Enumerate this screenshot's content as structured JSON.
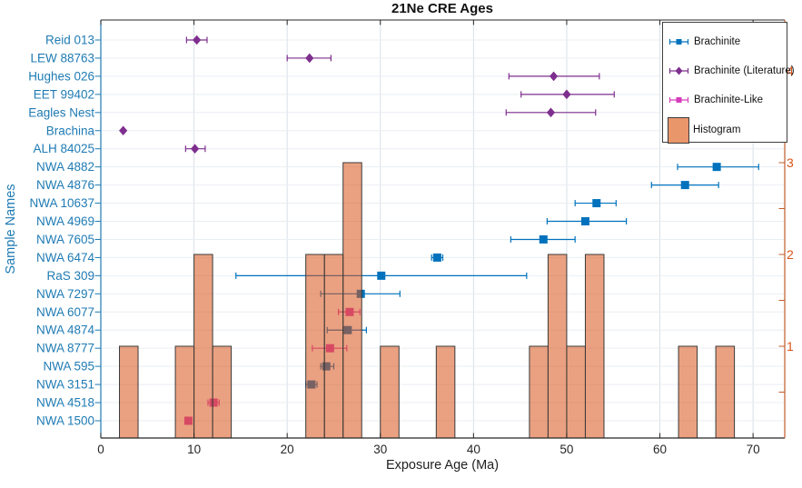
{
  "figure": {
    "title": "21Ne CRE Ages",
    "xlabel": "Exposure Age (Ma)",
    "ylabel": "Sample Names"
  },
  "legend": {
    "items": [
      {
        "label": "Brachinite",
        "marker": "blue-square-errorbar"
      },
      {
        "label": "Brachinite (Literature)",
        "marker": "purple-diamond-errorbar"
      },
      {
        "label": "Brachinite-Like",
        "marker": "magenta-square-errorbar"
      },
      {
        "label": "Histogram",
        "marker": "orange-swatch"
      }
    ]
  },
  "colors": {
    "brachinite": "#0072BD",
    "brachinite_literature": "#7E2F8E",
    "brachinite_like": "#D63CBC",
    "histogram_fill": "#D95319",
    "histogram_fill_opacity": 0.55,
    "histogram_edge": "#3A3A3A",
    "left_axis": "#1F7BB4",
    "right_axis": "#C25B2A",
    "right_label": "#D95319",
    "axis_dark": "#262626",
    "grid_v": "#D9E0E8",
    "grid_h": "#E9EEF3"
  },
  "chart_data": {
    "type": "scatter",
    "subtype": "horizontal errorbar chart with overlaid semi-transparent histogram",
    "title": "21Ne CRE Ages",
    "xlabel": "Exposure Age (Ma)",
    "ylabel": "Sample Names",
    "xlim": [
      0,
      73.4
    ],
    "x_ticks": [
      0,
      10,
      20,
      30,
      40,
      50,
      60,
      70
    ],
    "right_axis_ticks": [
      1,
      2,
      3,
      4
    ],
    "right_axis_minor_step": 0.5,
    "right_ylim": [
      0,
      4.56
    ],
    "grid": true,
    "legend_position": "top-right-inside",
    "samples": [
      {
        "name": "Reid 013",
        "group": "literature",
        "age": 10.3,
        "age_min": 9.2,
        "age_max": 11.4
      },
      {
        "name": "LEW 88763",
        "group": "literature",
        "age": 22.4,
        "age_min": 20.0,
        "age_max": 24.7
      },
      {
        "name": "Hughes 026",
        "group": "literature",
        "age": 48.6,
        "age_min": 43.8,
        "age_max": 53.5
      },
      {
        "name": "EET 99402",
        "group": "literature",
        "age": 50.0,
        "age_min": 45.1,
        "age_max": 55.1
      },
      {
        "name": "Eagles Nest",
        "group": "literature",
        "age": 48.3,
        "age_min": 43.5,
        "age_max": 53.1
      },
      {
        "name": "Brachina",
        "group": "literature",
        "age": 2.4,
        "age_min": 2.4,
        "age_max": 2.4
      },
      {
        "name": "ALH 84025",
        "group": "literature",
        "age": 10.1,
        "age_min": 9.1,
        "age_max": 11.2
      },
      {
        "name": "NWA 4882",
        "group": "brachinite",
        "age": 66.1,
        "age_min": 61.9,
        "age_max": 70.6
      },
      {
        "name": "NWA 4876",
        "group": "brachinite",
        "age": 62.7,
        "age_min": 59.1,
        "age_max": 66.3
      },
      {
        "name": "NWA 10637",
        "group": "brachinite",
        "age": 53.2,
        "age_min": 50.9,
        "age_max": 55.3
      },
      {
        "name": "NWA 4969",
        "group": "brachinite",
        "age": 52.0,
        "age_min": 47.9,
        "age_max": 56.4
      },
      {
        "name": "NWA 7605",
        "group": "brachinite",
        "age": 47.5,
        "age_min": 44.0,
        "age_max": 50.9
      },
      {
        "name": "NWA 6474",
        "group": "brachinite",
        "age": 36.1,
        "age_min": 35.5,
        "age_max": 36.7
      },
      {
        "name": "RaS 309",
        "group": "brachinite",
        "age": 30.1,
        "age_min": 14.5,
        "age_max": 45.7
      },
      {
        "name": "NWA 7297",
        "group": "brachinite",
        "age": 27.9,
        "age_min": 23.6,
        "age_max": 32.1
      },
      {
        "name": "NWA 6077",
        "group": "like",
        "age": 26.7,
        "age_min": 25.5,
        "age_max": 27.8
      },
      {
        "name": "NWA 4874",
        "group": "brachinite",
        "age": 26.5,
        "age_min": 24.3,
        "age_max": 28.5
      },
      {
        "name": "NWA 8777",
        "group": "like",
        "age": 24.6,
        "age_min": 22.7,
        "age_max": 26.4
      },
      {
        "name": "NWA 595",
        "group": "brachinite",
        "age": 24.2,
        "age_min": 23.6,
        "age_max": 25.0
      },
      {
        "name": "NWA 3151",
        "group": "brachinite",
        "age": 22.6,
        "age_min": 22.0,
        "age_max": 23.2
      },
      {
        "name": "NWA 4518",
        "group": "like",
        "age": 12.1,
        "age_min": 11.5,
        "age_max": 12.7
      },
      {
        "name": "NWA 1500",
        "group": "like",
        "age": 9.4,
        "age_min": 9.4,
        "age_max": 9.4
      }
    ],
    "histogram": {
      "bin_width": 2,
      "bins": [
        {
          "start": 2,
          "end": 4,
          "count": 1
        },
        {
          "start": 8,
          "end": 10,
          "count": 1
        },
        {
          "start": 10,
          "end": 12,
          "count": 2
        },
        {
          "start": 12,
          "end": 14,
          "count": 1
        },
        {
          "start": 22,
          "end": 24,
          "count": 2
        },
        {
          "start": 24,
          "end": 26,
          "count": 2
        },
        {
          "start": 26,
          "end": 28,
          "count": 3
        },
        {
          "start": 30,
          "end": 32,
          "count": 1
        },
        {
          "start": 36,
          "end": 38,
          "count": 1
        },
        {
          "start": 46,
          "end": 48,
          "count": 1
        },
        {
          "start": 48,
          "end": 50,
          "count": 2
        },
        {
          "start": 50,
          "end": 52,
          "count": 1
        },
        {
          "start": 52,
          "end": 54,
          "count": 2
        },
        {
          "start": 62,
          "end": 64,
          "count": 1
        },
        {
          "start": 66,
          "end": 68,
          "count": 1
        }
      ]
    }
  }
}
